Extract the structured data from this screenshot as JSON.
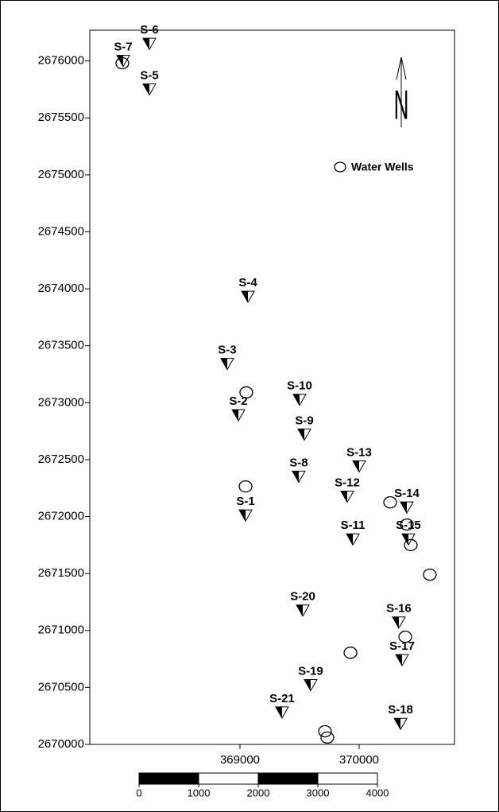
{
  "chart_data": {
    "type": "scatter",
    "xlim": [
      367740,
      370800
    ],
    "ylim": [
      2670000,
      2676270
    ],
    "xticks": [
      369000,
      370000
    ],
    "yticks": [
      2670000,
      2670500,
      2671000,
      2671500,
      2672000,
      2672500,
      2673000,
      2673500,
      2674000,
      2674500,
      2675000,
      2675500,
      2676000
    ],
    "series": [
      {
        "marker": "triangle",
        "color": "#000000",
        "labels": [
          "S-7",
          "S-6",
          "S-5",
          "S-4",
          "S-3",
          "S-2",
          "S-1",
          "S-10",
          "S-9",
          "S-8",
          "S-13",
          "S-12",
          "S-14",
          "S-11",
          "S-15",
          "S-16",
          "S-20",
          "S-17",
          "S-19",
          "S-21",
          "S-18"
        ],
        "x": [
          368020,
          368240,
          368240,
          369067,
          368893,
          368987,
          369047,
          369500,
          369540,
          369493,
          370000,
          369900,
          370400,
          369947,
          370413,
          370333,
          369527,
          370360,
          369593,
          369353,
          370347
        ],
        "values": [
          2676000,
          2676150,
          2675750,
          2673930,
          2673340,
          2672890,
          2672010,
          2673025,
          2672720,
          2672350,
          2672440,
          2672175,
          2672080,
          2671800,
          2671800,
          2671070,
          2671175,
          2670740,
          2670520,
          2670280,
          2670180
        ]
      },
      {
        "name": "Water Wells",
        "marker": "circle",
        "color": "#000000",
        "x": [
          368013,
          369053,
          369047,
          370260,
          370400,
          370433,
          370593,
          370387,
          369927,
          369713,
          369733
        ],
        "values": [
          2675980,
          2673090,
          2672265,
          2672125,
          2671930,
          2671750,
          2671490,
          2670945,
          2670805,
          2670115,
          2670060
        ]
      }
    ],
    "north": "N",
    "scale_bar": {
      "ticks": [
        0,
        1000,
        2000,
        3000,
        4000
      ]
    }
  }
}
